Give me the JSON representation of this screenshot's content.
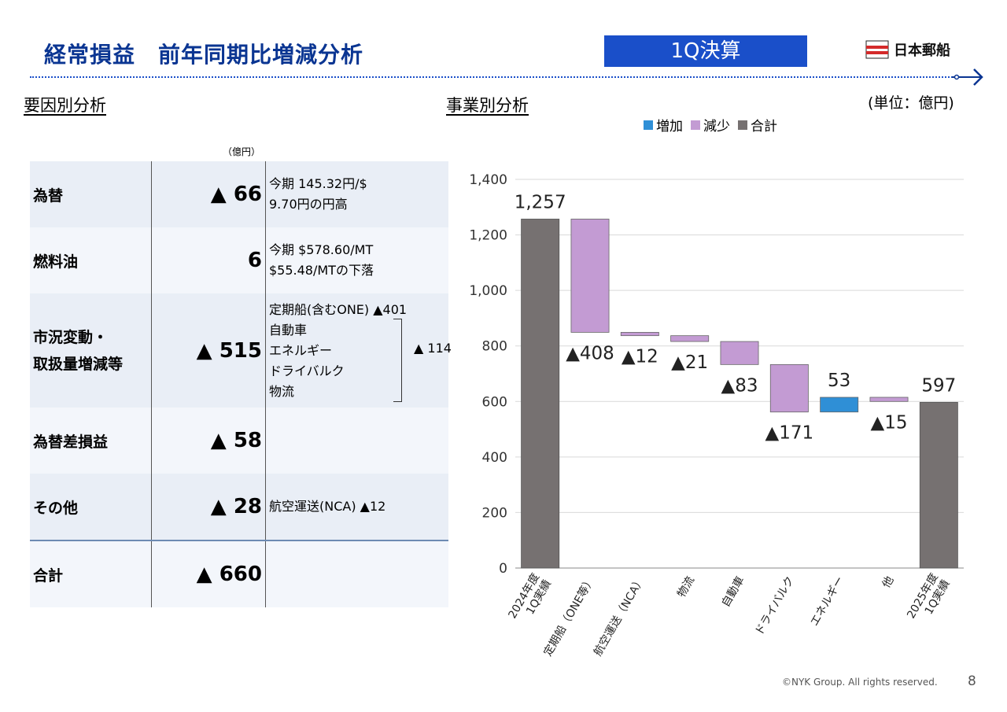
{
  "header": {
    "title": "経常損益　前年同期比増減分析",
    "badge": "1Q決算",
    "logo_text": "日本郵船"
  },
  "left_section": {
    "heading": "要因別分析",
    "unit": "（億円）",
    "rows": [
      {
        "label": "為替",
        "value": "▲ 66",
        "notes": [
          "今期 145.32円/$",
          "9.70円の円高"
        ]
      },
      {
        "label": "燃料油",
        "value": "6",
        "notes": [
          "今期 $578.60/MT",
          "$55.48/MTの下落"
        ]
      },
      {
        "label": "市況変動・\n取扱量増減等",
        "label_lines": [
          "市況変動・",
          "取扱量増減等"
        ],
        "value": "▲ 515",
        "notes": [
          "定期船(含むONE) ▲401",
          "自動車",
          "エネルギー",
          "ドライバルク",
          "物流"
        ],
        "brace_value": "▲ 114"
      },
      {
        "label": "為替差損益",
        "value": "▲ 58",
        "notes": []
      },
      {
        "label": "その他",
        "value": "▲ 28",
        "notes": [
          "航空運送(NCA) ▲12"
        ]
      },
      {
        "label": "合計",
        "value": "▲ 660",
        "notes": []
      }
    ]
  },
  "right_section": {
    "heading": "事業別分析",
    "unit": "(単位：億円)"
  },
  "colors": {
    "brand_blue": "#0a3592",
    "badge_blue": "#1a4fc9",
    "increase": "#2f8fd6",
    "decrease": "#c39bd3",
    "total": "#767171"
  },
  "chart_data": {
    "type": "bar",
    "subtype": "waterfall",
    "legend": [
      "増加",
      "減少",
      "合計"
    ],
    "legend_position": "top",
    "ylim": [
      0,
      1400
    ],
    "yticks": [
      0,
      200,
      400,
      600,
      800,
      1000,
      1200,
      1400
    ],
    "ytick_labels": [
      "0",
      "200",
      "400",
      "600",
      "800",
      "1,000",
      "1,200",
      "1,400"
    ],
    "grid": true,
    "categories": [
      "2024年度\n1Q実績",
      "定期船（ONE等）",
      "航空運送（NCA）",
      "物流",
      "自動車",
      "ドライバルク",
      "エネルギー",
      "他",
      "2025年度\n1Q実績"
    ],
    "bars": [
      {
        "kind": "total",
        "start": 0,
        "end": 1257,
        "label": "1,257"
      },
      {
        "kind": "decrease",
        "start": 1257,
        "end": 849,
        "label": "▲408"
      },
      {
        "kind": "decrease",
        "start": 849,
        "end": 837,
        "label": "▲12"
      },
      {
        "kind": "decrease",
        "start": 837,
        "end": 816,
        "label": "▲21"
      },
      {
        "kind": "decrease",
        "start": 816,
        "end": 733,
        "label": "▲83"
      },
      {
        "kind": "decrease",
        "start": 733,
        "end": 562,
        "label": "▲171"
      },
      {
        "kind": "increase",
        "start": 562,
        "end": 615,
        "label": "53"
      },
      {
        "kind": "decrease",
        "start": 615,
        "end": 600,
        "label": "▲15"
      },
      {
        "kind": "total",
        "start": 0,
        "end": 597,
        "label": "597"
      }
    ]
  },
  "footer": {
    "copyright": "©NYK Group. All rights reserved.",
    "page": "8"
  }
}
